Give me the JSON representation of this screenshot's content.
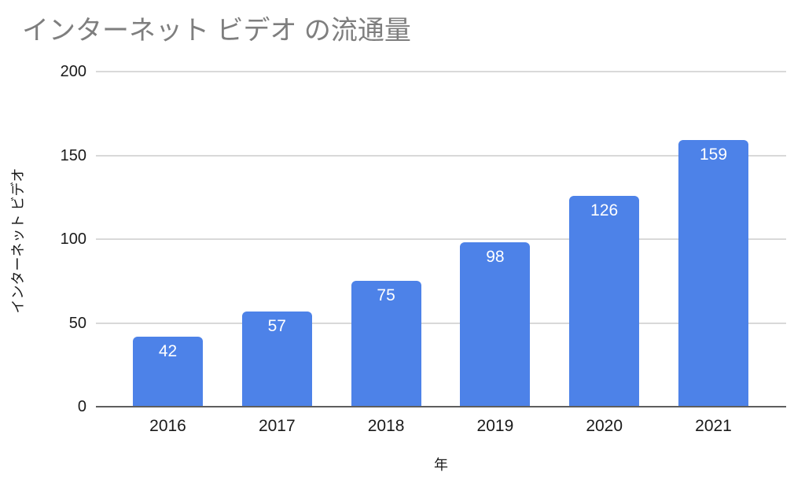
{
  "page": {
    "background_color": "#ffffff"
  },
  "chart_data": {
    "type": "bar",
    "title": "インターネット ビデオ の流通量",
    "xlabel": "年",
    "ylabel": "インターネット ビデオ",
    "categories": [
      "2016",
      "2017",
      "2018",
      "2019",
      "2020",
      "2021"
    ],
    "values": [
      42,
      57,
      75,
      98,
      126,
      159
    ],
    "value_labels": [
      "42",
      "57",
      "75",
      "98",
      "126",
      "159"
    ],
    "ylim": [
      0,
      200
    ],
    "yticks": [
      0,
      50,
      100,
      150,
      200
    ],
    "grid": true,
    "legend_position": "none",
    "colors": {
      "bar": "#4d82e8",
      "value_label": "#ffffff",
      "title": "#7e7e7e",
      "axis_text": "#1a1a1a",
      "gridline": "#d9d9d9",
      "axis_line": "#5e5e5e"
    }
  }
}
